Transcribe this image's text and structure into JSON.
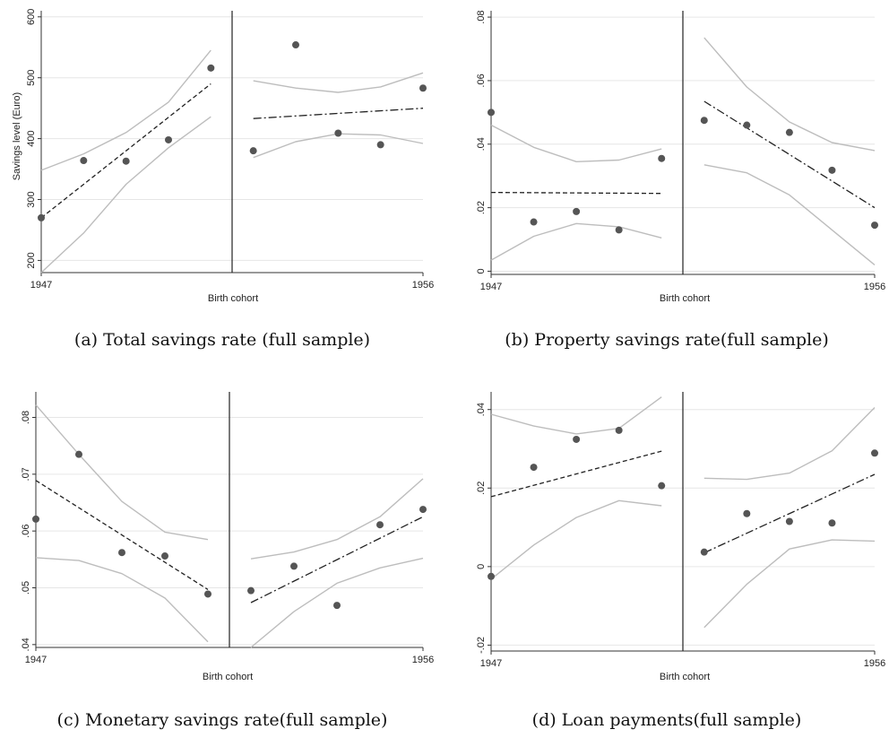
{
  "chart_data": [
    {
      "type": "scatter",
      "caption": "(a) Total savings rate (full sample)",
      "xlabel": "Birth cohort",
      "ylabel": "Savings level (Euro)",
      "x_ticks": [
        "1947",
        "1956"
      ],
      "xlim": [
        1947,
        1956
      ],
      "y_ticks": [
        "200",
        "300",
        "400",
        "500",
        "600"
      ],
      "y_tick_values": [
        200,
        300,
        400,
        500,
        600
      ],
      "ylim": [
        180,
        610
      ],
      "cutoff": 1951.5,
      "points": [
        [
          1947,
          270
        ],
        [
          1948,
          364
        ],
        [
          1949,
          363
        ],
        [
          1950,
          398
        ],
        [
          1951,
          516
        ],
        [
          1952,
          380
        ],
        [
          1953,
          554
        ],
        [
          1954,
          409
        ],
        [
          1955,
          390
        ],
        [
          1956,
          483
        ]
      ],
      "fit_left": [
        [
          1947,
          270
        ],
        [
          1951,
          490
        ]
      ],
      "fit_right": [
        [
          1952,
          433
        ],
        [
          1956,
          450
        ]
      ],
      "ci_left_upper": [
        [
          1947,
          348
        ],
        [
          1948,
          375
        ],
        [
          1949,
          410
        ],
        [
          1950,
          460
        ],
        [
          1951,
          545
        ]
      ],
      "ci_left_lower": [
        [
          1947,
          180
        ],
        [
          1948,
          245
        ],
        [
          1949,
          325
        ],
        [
          1950,
          385
        ],
        [
          1951,
          436
        ]
      ],
      "ci_right_upper": [
        [
          1952,
          495
        ],
        [
          1953,
          483
        ],
        [
          1954,
          476
        ],
        [
          1955,
          485
        ],
        [
          1956,
          508
        ]
      ],
      "ci_right_lower": [
        [
          1952,
          369
        ],
        [
          1953,
          395
        ],
        [
          1954,
          408
        ],
        [
          1955,
          406
        ],
        [
          1956,
          392
        ]
      ],
      "grid": true
    },
    {
      "type": "scatter",
      "caption": "(b) Property savings rate(full sample)",
      "xlabel": "Birth cohort",
      "ylabel": "",
      "x_ticks": [
        "1947",
        "1956"
      ],
      "xlim": [
        1947,
        1956
      ],
      "y_ticks": [
        "0",
        ".02",
        ".04",
        ".06",
        ".08"
      ],
      "y_tick_values": [
        0,
        0.02,
        0.04,
        0.06,
        0.08
      ],
      "ylim": [
        -0.001,
        0.082
      ],
      "cutoff": 1951.5,
      "points": [
        [
          1947,
          0.05
        ],
        [
          1948,
          0.0155
        ],
        [
          1949,
          0.0188
        ],
        [
          1950,
          0.013
        ],
        [
          1951,
          0.0355
        ],
        [
          1952,
          0.0475
        ],
        [
          1953,
          0.046
        ],
        [
          1954,
          0.0437
        ],
        [
          1955,
          0.0318
        ],
        [
          1956,
          0.0145
        ]
      ],
      "fit_left": [
        [
          1947,
          0.0248
        ],
        [
          1951,
          0.0245
        ]
      ],
      "fit_right": [
        [
          1952,
          0.0535
        ],
        [
          1956,
          0.02
        ]
      ],
      "ci_left_upper": [
        [
          1947,
          0.046
        ],
        [
          1948,
          0.039
        ],
        [
          1949,
          0.0345
        ],
        [
          1950,
          0.035
        ],
        [
          1951,
          0.0385
        ]
      ],
      "ci_left_lower": [
        [
          1947,
          0.0035
        ],
        [
          1948,
          0.011
        ],
        [
          1949,
          0.015
        ],
        [
          1950,
          0.014
        ],
        [
          1951,
          0.0105
        ]
      ],
      "ci_right_upper": [
        [
          1952,
          0.0735
        ],
        [
          1953,
          0.058
        ],
        [
          1954,
          0.047
        ],
        [
          1955,
          0.0405
        ],
        [
          1956,
          0.038
        ]
      ],
      "ci_right_lower": [
        [
          1952,
          0.0335
        ],
        [
          1953,
          0.031
        ],
        [
          1954,
          0.024
        ],
        [
          1955,
          0.013
        ],
        [
          1956,
          0.002
        ]
      ],
      "grid": true
    },
    {
      "type": "scatter",
      "caption": "(c) Monetary savings rate(full sample)",
      "xlabel": "Birth cohort",
      "ylabel": "",
      "x_ticks": [
        "1947",
        "1956"
      ],
      "xlim": [
        1947,
        1956
      ],
      "y_ticks": [
        ".04",
        ".05",
        ".06",
        ".07",
        ".08"
      ],
      "y_tick_values": [
        0.04,
        0.05,
        0.06,
        0.07,
        0.08
      ],
      "ylim": [
        0.0395,
        0.0845
      ],
      "cutoff": 1951.5,
      "points": [
        [
          1947,
          0.0621
        ],
        [
          1948,
          0.0735
        ],
        [
          1949,
          0.0562
        ],
        [
          1950,
          0.0556
        ],
        [
          1951,
          0.0489
        ],
        [
          1952,
          0.0495
        ],
        [
          1953,
          0.0538
        ],
        [
          1954,
          0.0469
        ],
        [
          1955,
          0.0611
        ],
        [
          1956,
          0.0638
        ]
      ],
      "fit_left": [
        [
          1947,
          0.0689
        ],
        [
          1951,
          0.0497
        ]
      ],
      "fit_right": [
        [
          1952,
          0.0474
        ],
        [
          1956,
          0.0625
        ]
      ],
      "ci_left_upper": [
        [
          1947,
          0.0822
        ],
        [
          1948,
          0.0735
        ],
        [
          1949,
          0.0652
        ],
        [
          1950,
          0.0598
        ],
        [
          1951,
          0.0585
        ]
      ],
      "ci_left_lower": [
        [
          1947,
          0.0553
        ],
        [
          1948,
          0.0548
        ],
        [
          1949,
          0.0525
        ],
        [
          1950,
          0.0482
        ],
        [
          1951,
          0.0405
        ]
      ],
      "ci_right_upper": [
        [
          1952,
          0.0551
        ],
        [
          1953,
          0.0563
        ],
        [
          1954,
          0.0585
        ],
        [
          1955,
          0.0625
        ],
        [
          1956,
          0.0692
        ]
      ],
      "ci_right_lower": [
        [
          1952,
          0.0395
        ],
        [
          1953,
          0.0458
        ],
        [
          1954,
          0.0508
        ],
        [
          1955,
          0.0535
        ],
        [
          1956,
          0.0552
        ]
      ],
      "grid": true
    },
    {
      "type": "scatter",
      "caption": "(d) Loan payments(full sample)",
      "xlabel": "Birth cohort",
      "ylabel": "",
      "x_ticks": [
        "1947",
        "1956"
      ],
      "xlim": [
        1947,
        1956
      ],
      "y_ticks": [
        "-.02",
        "0",
        ".02",
        ".04"
      ],
      "y_tick_values": [
        -0.02,
        0,
        0.02,
        0.04
      ],
      "ylim": [
        -0.0215,
        0.0445
      ],
      "cutoff": 1951.5,
      "points": [
        [
          1947,
          -0.0025
        ],
        [
          1948,
          0.0253
        ],
        [
          1949,
          0.0324
        ],
        [
          1950,
          0.0347
        ],
        [
          1951,
          0.0206
        ],
        [
          1952,
          0.0037
        ],
        [
          1953,
          0.0135
        ],
        [
          1954,
          0.0115
        ],
        [
          1955,
          0.0111
        ],
        [
          1956,
          0.0289
        ]
      ],
      "fit_left": [
        [
          1947,
          0.0178
        ],
        [
          1951,
          0.0294
        ]
      ],
      "fit_right": [
        [
          1952,
          0.0035
        ],
        [
          1956,
          0.0235
        ]
      ],
      "ci_left_upper": [
        [
          1947,
          0.0388
        ],
        [
          1948,
          0.0358
        ],
        [
          1949,
          0.0338
        ],
        [
          1950,
          0.0352
        ],
        [
          1951,
          0.0432
        ]
      ],
      "ci_left_lower": [
        [
          1947,
          -0.0032
        ],
        [
          1948,
          0.0055
        ],
        [
          1949,
          0.0125
        ],
        [
          1950,
          0.0168
        ],
        [
          1951,
          0.0155
        ]
      ],
      "ci_right_upper": [
        [
          1952,
          0.0225
        ],
        [
          1953,
          0.0222
        ],
        [
          1954,
          0.0238
        ],
        [
          1955,
          0.0295
        ],
        [
          1956,
          0.0405
        ]
      ],
      "ci_right_lower": [
        [
          1952,
          -0.0155
        ],
        [
          1953,
          -0.0045
        ],
        [
          1954,
          0.0045
        ],
        [
          1955,
          0.0068
        ],
        [
          1956,
          0.0065
        ]
      ],
      "grid": true
    }
  ]
}
